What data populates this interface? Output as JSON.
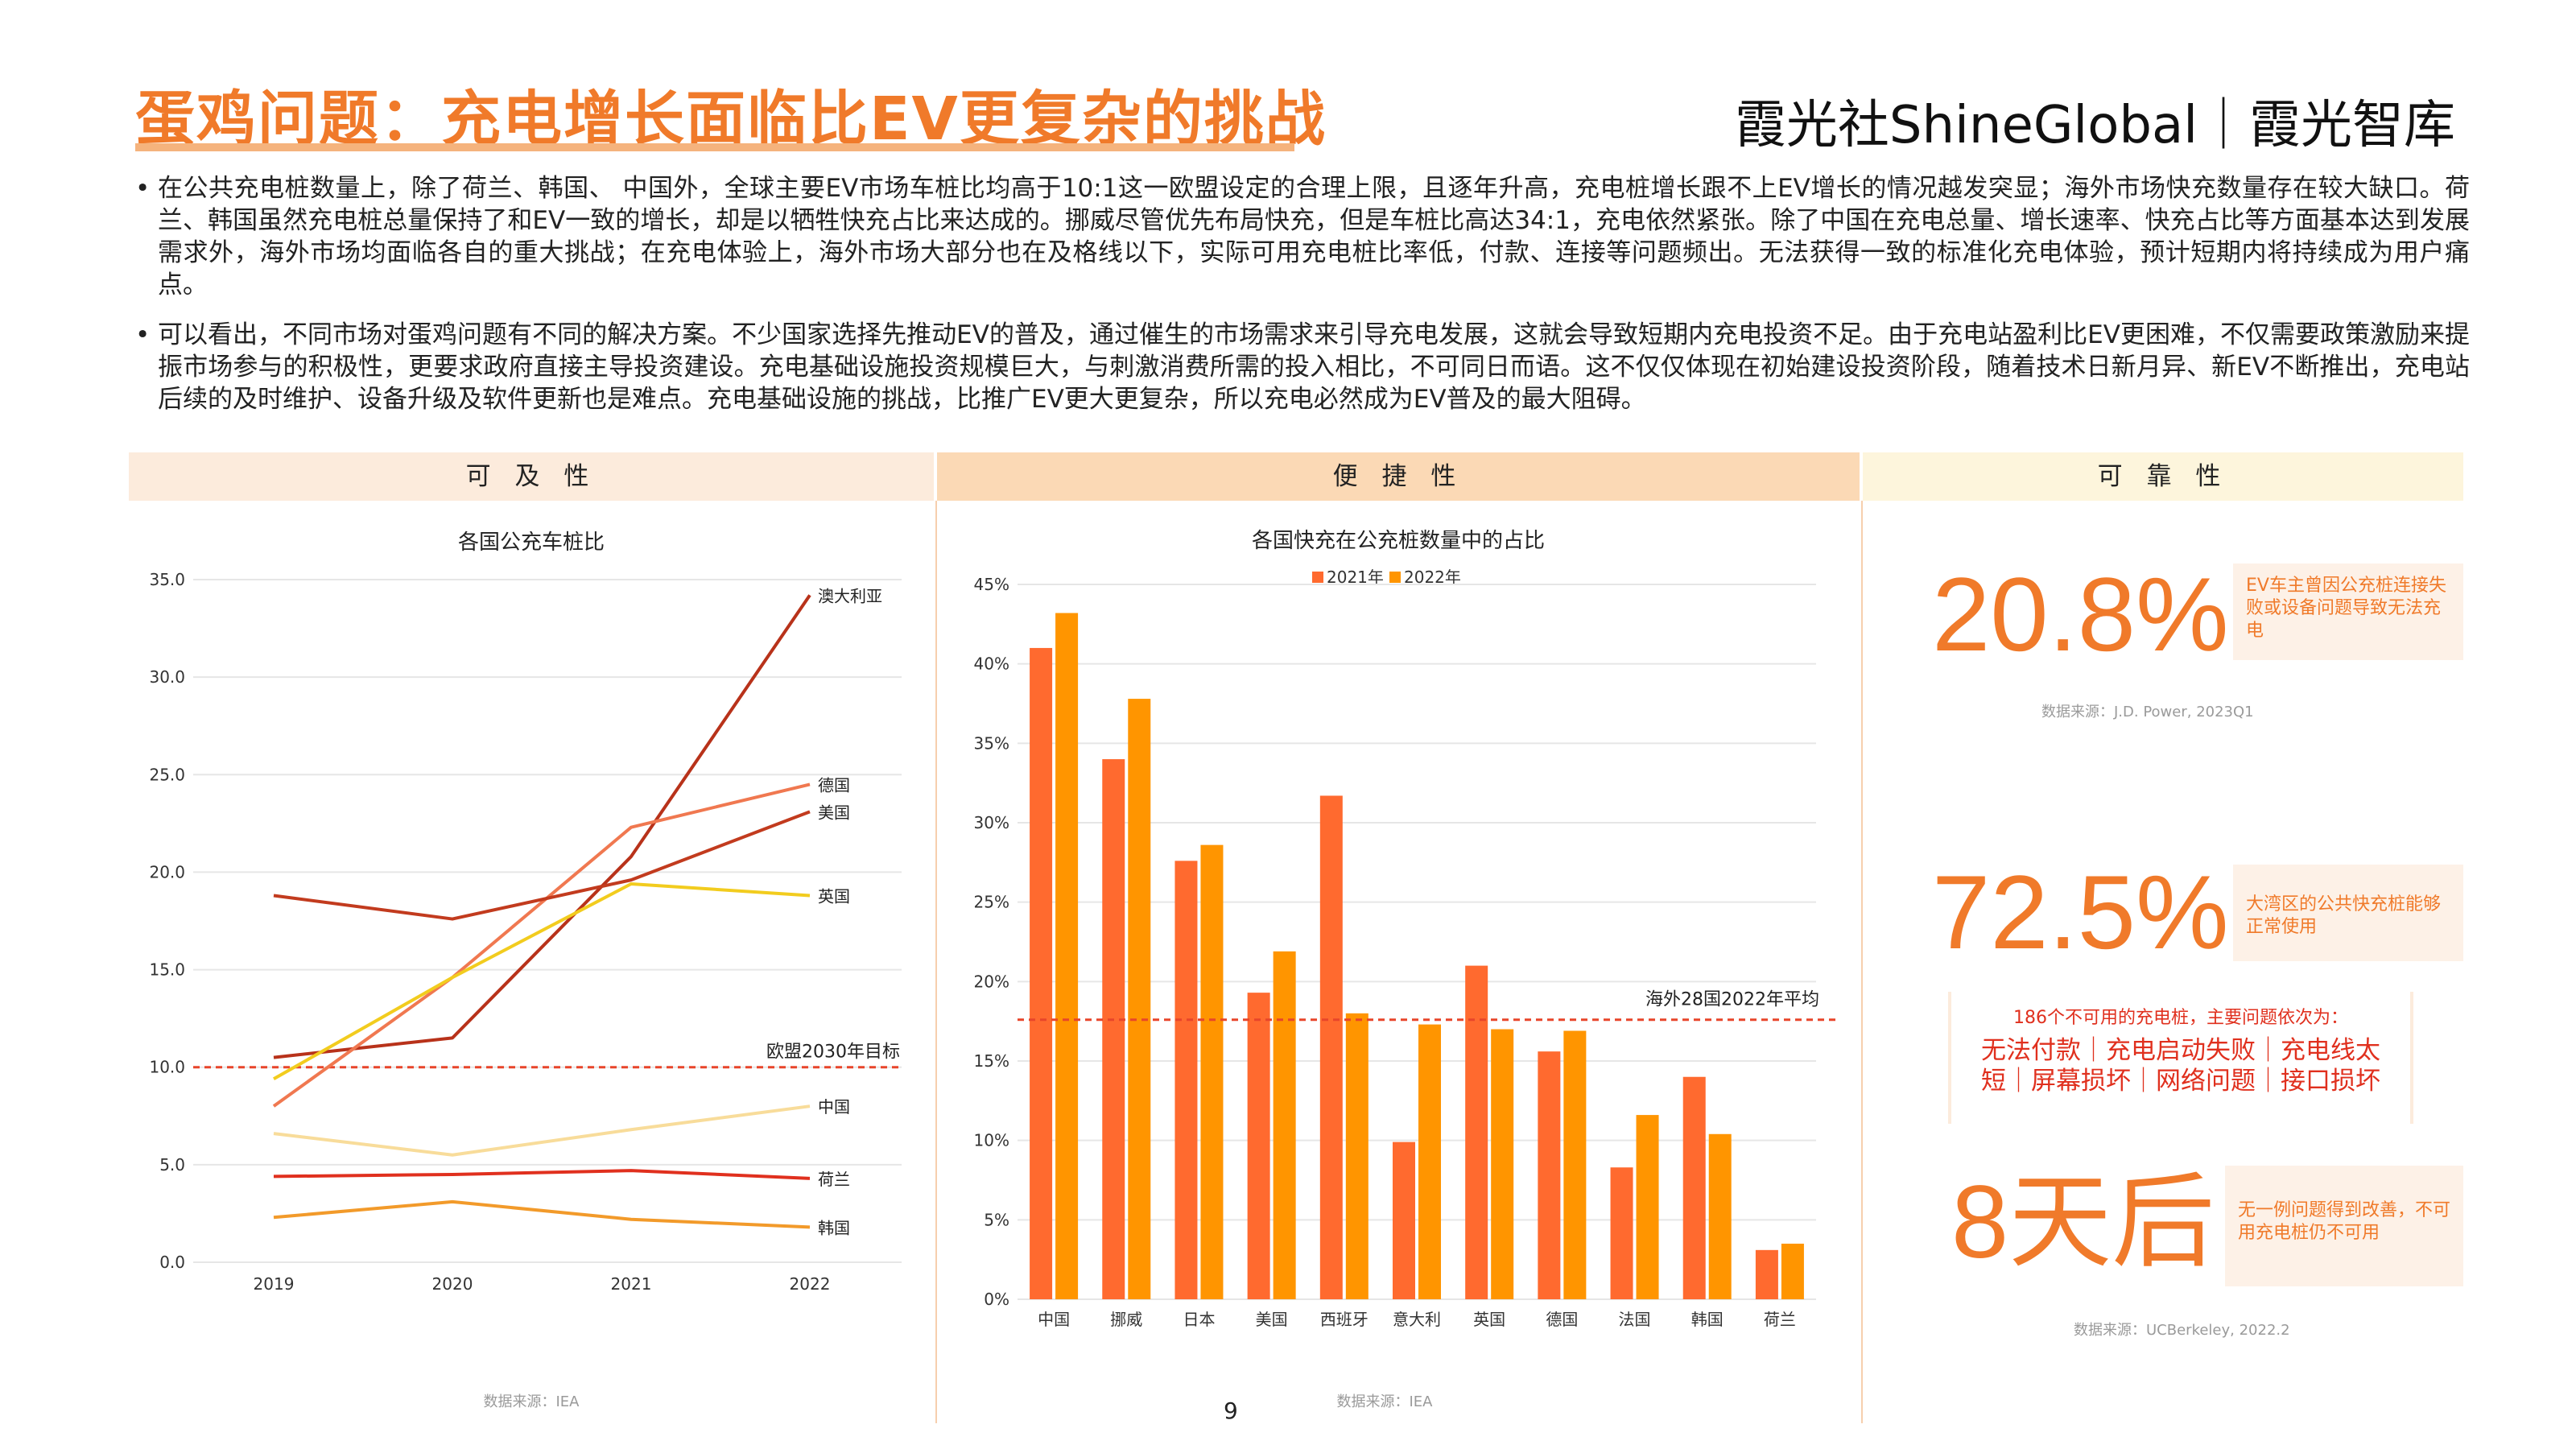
{
  "header": {
    "title": "蛋鸡问题：充电增长面临比EV更复杂的挑战",
    "brand": "霞光社ShineGlobal｜霞光智库"
  },
  "bullets": [
    "在公共充电桩数量上，除了荷兰、韩国、 中国外，全球主要EV市场车桩比均高于10:1这一欧盟设定的合理上限，且逐年升高，充电桩增长跟不上EV增长的情况越发突显；海外市场快充数量存在较大缺口。荷兰、韩国虽然充电桩总量保持了和EV一致的增长，却是以牺牲快充占比来达成的。挪威尽管优先布局快充，但是车桩比高达34:1，充电依然紧张。除了中国在充电总量、增长速率、快充占比等方面基本达到发展需求外，海外市场均面临各自的重大挑战；在充电体验上，海外市场大部分也在及格线以下，实际可用充电桩比率低，付款、连接等问题频出。无法获得一致的标准化充电体验，预计短期内将持续成为用户痛点。",
    "可以看出，不同市场对蛋鸡问题有不同的解决方案。不少国家选择先推动EV的普及，通过催生的市场需求来引导充电发展，这就会导致短期内充电投资不足。由于充电站盈利比EV更困难，不仅需要政策激励来提振市场参与的积极性，更要求政府直接主导投资建设。充电基础设施投资规模巨大，与刺激消费所需的投入相比，不可同日而语。这不仅仅体现在初始建设投资阶段，随着技术日新月异、新EV不断推出，充电站后续的及时维护、设备升级及软件更新也是难点。充电基础设施的挑战，比推广EV更大更复杂，所以充电必然成为EV普及的最大阻碍。"
  ],
  "sections": {
    "accessibility": "可 及 性",
    "convenience": "便 捷 性",
    "reliability": "可 靠 性"
  },
  "chart_data": [
    {
      "type": "line",
      "title": "各国公充车桩比",
      "x": [
        "2019",
        "2020",
        "2021",
        "2022"
      ],
      "ylim": [
        0,
        35
      ],
      "yticks": [
        "0.0",
        "5.0",
        "10.0",
        "15.0",
        "20.0",
        "25.0",
        "30.0",
        "35.0"
      ],
      "series": [
        {
          "name": "澳大利亚",
          "values": [
            10.5,
            11.5,
            20.8,
            34.2
          ],
          "color": "#b8321a"
        },
        {
          "name": "德国",
          "values": [
            8.0,
            14.6,
            22.3,
            24.5
          ],
          "color": "#f07850"
        },
        {
          "name": "美国",
          "values": [
            18.8,
            17.6,
            19.6,
            23.1
          ],
          "color": "#c23b1e"
        },
        {
          "name": "英国",
          "values": [
            9.4,
            14.6,
            19.4,
            18.8
          ],
          "color": "#f2cc1e"
        },
        {
          "name": "中国",
          "values": [
            6.6,
            5.5,
            6.8,
            8.0
          ],
          "color": "#f8dc9a"
        },
        {
          "name": "荷兰",
          "values": [
            4.4,
            4.5,
            4.7,
            4.3
          ],
          "color": "#e0301e"
        },
        {
          "name": "韩国",
          "values": [
            2.3,
            3.1,
            2.2,
            1.8
          ],
          "color": "#f29a2a"
        }
      ],
      "reference_line": {
        "value": 10,
        "label": "欧盟2030年目标"
      },
      "source": "数据来源：IEA"
    },
    {
      "type": "bar",
      "title": "各国快充在公充桩数量中的占比",
      "categories": [
        "中国",
        "挪威",
        "日本",
        "美国",
        "西班牙",
        "意大利",
        "英国",
        "德国",
        "法国",
        "韩国",
        "荷兰"
      ],
      "ylim": [
        0,
        45
      ],
      "yticks": [
        "0%",
        "5%",
        "10%",
        "15%",
        "20%",
        "25%",
        "30%",
        "35%",
        "40%",
        "45%"
      ],
      "series": [
        {
          "name": "2021年",
          "color": "#ff6a2f",
          "values": [
            41.0,
            34.0,
            27.6,
            19.3,
            31.7,
            9.9,
            21.0,
            15.6,
            8.3,
            14.0,
            3.1
          ]
        },
        {
          "name": "2022年",
          "color": "#ff9500",
          "values": [
            43.2,
            37.8,
            28.6,
            21.9,
            18.0,
            17.3,
            17.0,
            16.9,
            11.6,
            10.4,
            3.5
          ]
        }
      ],
      "reference_line": {
        "value": 17.6,
        "label": "海外28国2022年平均"
      },
      "source": "数据来源：IEA"
    }
  ],
  "reliability": {
    "stat1": {
      "value": "20.8%",
      "note": "EV车主曾因公充桩连接失败或设备问题导致无法充电",
      "source": "数据来源：J.D. Power, 2023Q1"
    },
    "stat2": {
      "value": "72.5%",
      "note": "大湾区的公共快充桩能够正常使用"
    },
    "problems": {
      "title": "186个不可用的充电桩，主要问题依次为：",
      "text": "无法付款｜充电启动失败｜充电线太短｜屏幕损坏｜网络问题｜接口损坏"
    },
    "stat3": {
      "value": "8天后",
      "note": "无一例问题得到改善，不可用充电桩仍不可用",
      "source": "数据来源：UCBerkeley, 2022.2"
    }
  },
  "footer": {
    "page": "9"
  }
}
